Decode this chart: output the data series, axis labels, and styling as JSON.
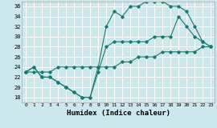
{
  "xlabel": "Humidex (Indice chaleur)",
  "background_color": "#cce8ec",
  "grid_color": "#ffffff",
  "line_color": "#1a7a6e",
  "xlim": [
    -0.5,
    23.5
  ],
  "ylim": [
    17,
    37
  ],
  "xticks": [
    0,
    1,
    2,
    3,
    4,
    5,
    6,
    7,
    8,
    9,
    10,
    11,
    12,
    13,
    14,
    15,
    16,
    17,
    18,
    19,
    20,
    21,
    22,
    23
  ],
  "yticks": [
    18,
    20,
    22,
    24,
    26,
    28,
    30,
    32,
    34,
    36
  ],
  "line1_x": [
    0,
    1,
    2,
    3,
    4,
    5,
    6,
    7,
    8,
    9,
    10,
    11,
    12,
    13,
    14,
    15,
    16,
    17,
    18,
    19,
    20,
    21,
    22,
    23
  ],
  "line1_y": [
    23,
    24,
    22,
    22,
    21,
    20,
    19,
    18,
    18,
    24,
    32,
    35,
    34,
    36,
    36,
    37,
    37,
    37,
    36,
    36,
    35,
    32,
    29,
    28
  ],
  "line2_x": [
    0,
    1,
    2,
    3,
    4,
    5,
    6,
    7,
    8,
    9,
    10,
    11,
    12,
    13,
    14,
    15,
    16,
    17,
    18,
    19,
    20,
    21,
    22,
    23
  ],
  "line2_y": [
    23,
    24,
    22,
    22,
    21,
    20,
    19,
    18,
    18,
    23,
    28,
    29,
    29,
    29,
    29,
    29,
    30,
    30,
    30,
    34,
    32,
    30,
    29,
    28
  ],
  "line3_x": [
    0,
    1,
    2,
    3,
    4,
    5,
    6,
    7,
    8,
    9,
    10,
    11,
    12,
    13,
    14,
    15,
    16,
    17,
    18,
    19,
    20,
    21,
    22,
    23
  ],
  "line3_y": [
    23,
    23,
    23,
    23,
    24,
    24,
    24,
    24,
    24,
    24,
    24,
    24,
    25,
    25,
    26,
    26,
    26,
    27,
    27,
    27,
    27,
    27,
    28,
    28
  ]
}
